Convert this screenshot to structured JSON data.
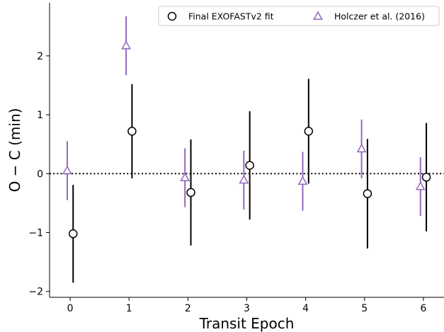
{
  "chart_data": {
    "type": "scatter",
    "xlabel": "Transit Epoch",
    "ylabel": "O − C (min)",
    "xlim": [
      -0.35,
      6.35
    ],
    "ylim": [
      -2.1,
      2.9
    ],
    "xticks": [
      0,
      1,
      2,
      3,
      4,
      5,
      6
    ],
    "yticks": [
      -2,
      -1,
      0,
      1,
      2
    ],
    "ytick_labels": [
      "−2",
      "−1",
      "0",
      "1",
      "2"
    ],
    "reference_line": {
      "y": 0,
      "style": "dotted",
      "color": "#000000"
    },
    "grid": false,
    "legend": {
      "placement": "top-right",
      "columns": 2
    },
    "series": [
      {
        "name": "Final EXOFASTv2 fit",
        "marker": "circle",
        "color": "#000000",
        "x_offset": 0.05,
        "points": [
          {
            "x": 0,
            "y": -1.02,
            "yerr": 0.83
          },
          {
            "x": 1,
            "y": 0.72,
            "yerr": 0.8
          },
          {
            "x": 2,
            "y": -0.32,
            "yerr": 0.9
          },
          {
            "x": 3,
            "y": 0.14,
            "yerr": 0.92
          },
          {
            "x": 4,
            "y": 0.72,
            "yerr": 0.89
          },
          {
            "x": 5,
            "y": -0.34,
            "yerr": 0.93
          },
          {
            "x": 6,
            "y": -0.06,
            "yerr": 0.92
          }
        ]
      },
      {
        "name": "Holczer et al. (2016)",
        "marker": "triangle",
        "color": "#9467bd",
        "x_offset": -0.05,
        "points": [
          {
            "x": 0,
            "y": 0.05,
            "yerr": 0.5
          },
          {
            "x": 1,
            "y": 2.17,
            "yerr": 0.5
          },
          {
            "x": 2,
            "y": -0.07,
            "yerr": 0.5
          },
          {
            "x": 3,
            "y": -0.11,
            "yerr": 0.5
          },
          {
            "x": 4,
            "y": -0.13,
            "yerr": 0.5
          },
          {
            "x": 5,
            "y": 0.42,
            "yerr": 0.5
          },
          {
            "x": 6,
            "y": -0.22,
            "yerr": 0.5
          }
        ]
      }
    ]
  }
}
